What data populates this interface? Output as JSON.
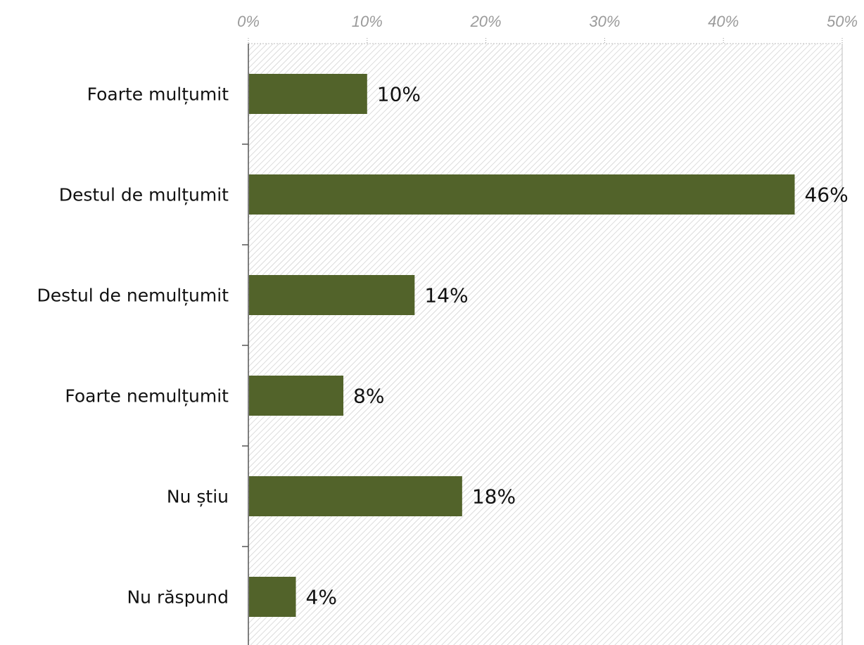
{
  "chart_data": {
    "type": "bar",
    "orientation": "horizontal",
    "categories": [
      "Foarte mulțumit",
      "Destul de mulțumit",
      "Destul de nemulțumit",
      "Foarte nemulțumit",
      "Nu știu",
      "Nu răspund"
    ],
    "values": [
      10,
      46,
      14,
      8,
      18,
      4
    ],
    "value_labels": [
      "10%",
      "46%",
      "14%",
      "8%",
      "18%",
      "4%"
    ],
    "x_ticks": [
      "0%",
      "10%",
      "20%",
      "30%",
      "40%",
      "50%"
    ],
    "xlim": [
      0,
      50
    ],
    "x_axis_position": "top",
    "title": "",
    "xlabel": "",
    "ylabel": "",
    "grid": true,
    "plot_background": "diagonal-hatch",
    "colors": {
      "bar": "#52632a",
      "hatch": "#c9c9c9",
      "grid": "#bdbdbd",
      "tick_text": "#9a9a9a",
      "label_text": "#111111"
    }
  }
}
